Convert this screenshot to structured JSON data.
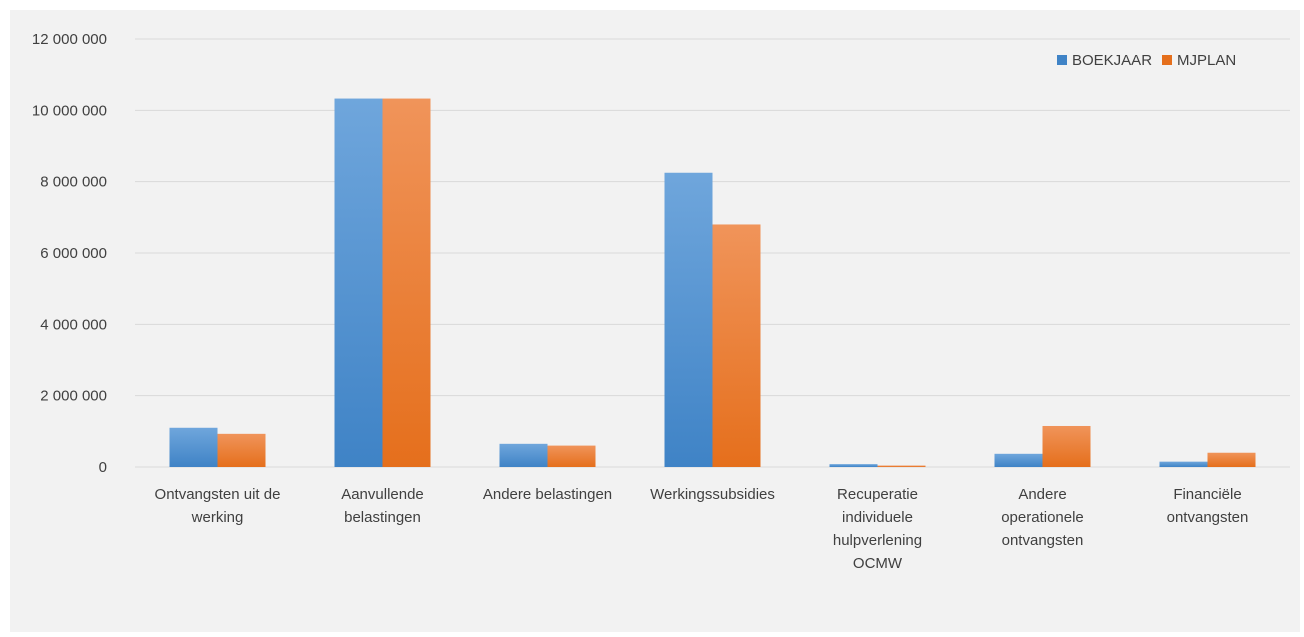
{
  "chart_data": {
    "type": "bar",
    "categories": [
      [
        "Ontvangsten uit de",
        "werking"
      ],
      [
        "Aanvullende",
        "belastingen"
      ],
      [
        "Andere belastingen"
      ],
      [
        "Werkingssubsidies"
      ],
      [
        "Recuperatie",
        "individuele",
        "hulpverlening",
        "OCMW"
      ],
      [
        "Andere",
        "operationele",
        "ontvangsten"
      ],
      [
        "Financiële",
        "ontvangsten"
      ]
    ],
    "series": [
      {
        "name": "BOEKJAAR",
        "values": [
          1100000,
          10330000,
          650000,
          8250000,
          80000,
          370000,
          150000
        ]
      },
      {
        "name": "MJPLAN",
        "values": [
          930000,
          10330000,
          600000,
          6800000,
          40000,
          1150000,
          400000
        ]
      }
    ],
    "ylim": [
      0,
      12000000
    ],
    "yticks": [
      0,
      2000000,
      4000000,
      6000000,
      8000000,
      10000000,
      12000000
    ],
    "ytick_labels": [
      "0",
      "2 000 000",
      "4 000 000",
      "6 000 000",
      "8 000 000",
      "10 000 000",
      "12 000 000"
    ],
    "grid": true,
    "legend": "top-right",
    "title": "",
    "xlabel": "",
    "ylabel": "",
    "colors": {
      "BOEKJAAR": {
        "top": "#6fa6dc",
        "bottom": "#3f83c6"
      },
      "MJPLAN": {
        "top": "#f0945a",
        "bottom": "#e56f1c"
      },
      "grid": "#d9d9d9",
      "background": "#f2f2f2"
    }
  }
}
